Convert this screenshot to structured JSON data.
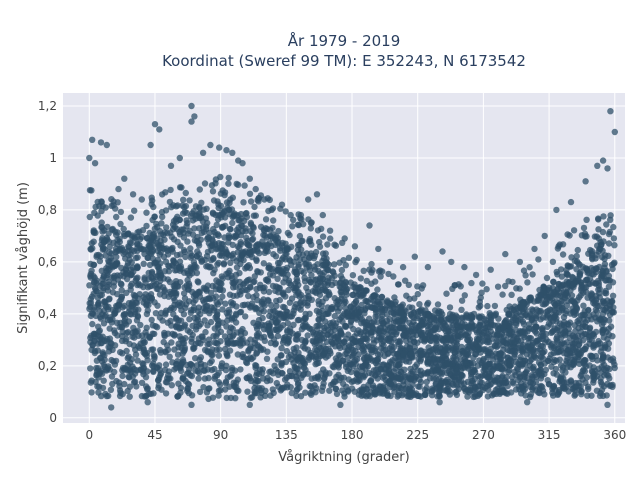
{
  "chart_data": {
    "type": "scatter",
    "title": "År 1979 - 2019",
    "subtitle": "Koordinat (Sweref 99 TM): E 352243, N 6173542",
    "xlabel": "Vågriktning (grader)",
    "ylabel": "Signifikant våghöjd (m)",
    "xlim": [
      -18,
      367
    ],
    "ylim": [
      -0.02,
      1.25
    ],
    "x_ticks": [
      0,
      45,
      90,
      135,
      180,
      225,
      270,
      315,
      360
    ],
    "x_tick_labels": [
      "0",
      "45",
      "90",
      "135",
      "180",
      "225",
      "270",
      "315",
      "360"
    ],
    "y_ticks": [
      0,
      0.2,
      0.4,
      0.6,
      0.8,
      1.0,
      1.2
    ],
    "y_tick_labels": [
      "0",
      "0,2",
      "0,4",
      "0,6",
      "0,8",
      "1",
      "1,2"
    ],
    "grid": true,
    "legend": "none",
    "colors": {
      "marker": "#2f5069",
      "plot_background": "#e5e6f0",
      "grid": "#ffffff"
    },
    "envelope": {
      "direction": [
        0,
        20,
        45,
        70,
        90,
        110,
        130,
        160,
        180,
        200,
        225,
        250,
        270,
        290,
        310,
        330,
        345,
        360
      ],
      "min_height": [
        0.08,
        0.08,
        0.08,
        0.07,
        0.07,
        0.07,
        0.08,
        0.08,
        0.08,
        0.08,
        0.08,
        0.08,
        0.08,
        0.08,
        0.08,
        0.08,
        0.08,
        0.08
      ],
      "dense_upper": [
        0.76,
        0.72,
        0.74,
        0.8,
        0.82,
        0.78,
        0.7,
        0.62,
        0.52,
        0.46,
        0.42,
        0.4,
        0.4,
        0.42,
        0.5,
        0.6,
        0.66,
        0.7
      ]
    },
    "outliers": [
      {
        "x": 70,
        "y": 1.2
      },
      {
        "x": 72,
        "y": 1.16
      },
      {
        "x": 70,
        "y": 1.14
      },
      {
        "x": 357,
        "y": 1.18
      },
      {
        "x": 360,
        "y": 1.1
      },
      {
        "x": 45,
        "y": 1.13
      },
      {
        "x": 48,
        "y": 1.11
      },
      {
        "x": 42,
        "y": 1.05
      },
      {
        "x": 2,
        "y": 1.07
      },
      {
        "x": 8,
        "y": 1.06
      },
      {
        "x": 12,
        "y": 1.05
      },
      {
        "x": 0,
        "y": 1.0
      },
      {
        "x": 4,
        "y": 0.98
      },
      {
        "x": 83,
        "y": 1.05
      },
      {
        "x": 89,
        "y": 1.04
      },
      {
        "x": 94,
        "y": 1.03
      },
      {
        "x": 98,
        "y": 1.02
      },
      {
        "x": 102,
        "y": 0.99
      },
      {
        "x": 105,
        "y": 0.98
      },
      {
        "x": 78,
        "y": 1.02
      },
      {
        "x": 62,
        "y": 1.0
      },
      {
        "x": 56,
        "y": 0.97
      },
      {
        "x": 352,
        "y": 0.99
      },
      {
        "x": 348,
        "y": 0.97
      },
      {
        "x": 355,
        "y": 0.96
      },
      {
        "x": 340,
        "y": 0.91
      },
      {
        "x": 330,
        "y": 0.83
      },
      {
        "x": 320,
        "y": 0.8
      },
      {
        "x": 312,
        "y": 0.7
      },
      {
        "x": 305,
        "y": 0.65
      },
      {
        "x": 295,
        "y": 0.6
      },
      {
        "x": 285,
        "y": 0.63
      },
      {
        "x": 275,
        "y": 0.57
      },
      {
        "x": 265,
        "y": 0.55
      },
      {
        "x": 257,
        "y": 0.58
      },
      {
        "x": 248,
        "y": 0.6
      },
      {
        "x": 242,
        "y": 0.64
      },
      {
        "x": 232,
        "y": 0.58
      },
      {
        "x": 223,
        "y": 0.62
      },
      {
        "x": 215,
        "y": 0.58
      },
      {
        "x": 206,
        "y": 0.6
      },
      {
        "x": 198,
        "y": 0.65
      },
      {
        "x": 192,
        "y": 0.74
      },
      {
        "x": 182,
        "y": 0.66
      },
      {
        "x": 175,
        "y": 0.69
      },
      {
        "x": 165,
        "y": 0.72
      },
      {
        "x": 160,
        "y": 0.78
      },
      {
        "x": 156,
        "y": 0.86
      },
      {
        "x": 150,
        "y": 0.84
      },
      {
        "x": 145,
        "y": 0.78
      },
      {
        "x": 138,
        "y": 0.78
      },
      {
        "x": 132,
        "y": 0.82
      },
      {
        "x": 125,
        "y": 0.8
      },
      {
        "x": 120,
        "y": 0.84
      },
      {
        "x": 114,
        "y": 0.88
      },
      {
        "x": 110,
        "y": 0.92
      },
      {
        "x": 24,
        "y": 0.92
      },
      {
        "x": 20,
        "y": 0.88
      },
      {
        "x": 30,
        "y": 0.86
      },
      {
        "x": 36,
        "y": 0.84
      },
      {
        "x": 15,
        "y": 0.04
      },
      {
        "x": 110,
        "y": 0.05
      },
      {
        "x": 172,
        "y": 0.05
      },
      {
        "x": 355,
        "y": 0.05
      },
      {
        "x": 70,
        "y": 0.05
      },
      {
        "x": 40,
        "y": 0.06
      },
      {
        "x": 240,
        "y": 0.06
      },
      {
        "x": 300,
        "y": 0.06
      }
    ]
  }
}
